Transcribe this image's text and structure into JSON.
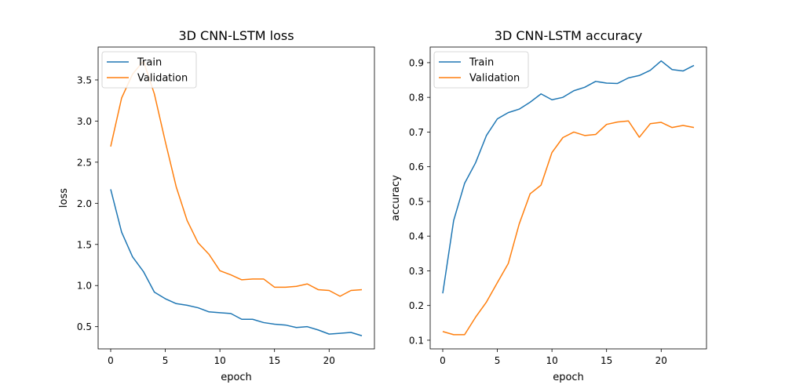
{
  "colors": {
    "train": "#1f77b4",
    "validation": "#ff7f0e"
  },
  "chart_data": [
    {
      "type": "line",
      "title": "3D CNN-LSTM loss",
      "xlabel": "epoch",
      "ylabel": "loss",
      "xlim": [
        -1.15,
        24.15
      ],
      "ylim": [
        0.23,
        3.9
      ],
      "xticks": [
        0,
        5,
        10,
        15,
        20
      ],
      "yticks": [
        0.5,
        1.0,
        1.5,
        2.0,
        2.5,
        3.0,
        3.5
      ],
      "ytick_labels": [
        "0.5",
        "1.0",
        "1.5",
        "2.0",
        "2.5",
        "3.0",
        "3.5"
      ],
      "legend": "upper left",
      "x": [
        0,
        1,
        2,
        3,
        4,
        5,
        6,
        7,
        8,
        9,
        10,
        11,
        12,
        13,
        14,
        15,
        16,
        17,
        18,
        19,
        20,
        21,
        22,
        23
      ],
      "series": [
        {
          "name": "Train",
          "key": "train",
          "values": [
            2.17,
            1.65,
            1.35,
            1.17,
            0.92,
            0.84,
            0.78,
            0.76,
            0.73,
            0.68,
            0.67,
            0.66,
            0.59,
            0.59,
            0.55,
            0.53,
            0.52,
            0.49,
            0.5,
            0.46,
            0.41,
            0.42,
            0.43,
            0.39
          ]
        },
        {
          "name": "Validation",
          "key": "validation",
          "values": [
            2.69,
            3.28,
            3.57,
            3.73,
            3.33,
            2.75,
            2.2,
            1.79,
            1.52,
            1.38,
            1.18,
            1.13,
            1.07,
            1.08,
            1.08,
            0.98,
            0.98,
            0.99,
            1.02,
            0.95,
            0.94,
            0.87,
            0.94,
            0.95
          ]
        }
      ]
    },
    {
      "type": "line",
      "title": "3D CNN-LSTM accuracy",
      "xlabel": "epoch",
      "ylabel": "accuracy",
      "xlim": [
        -1.15,
        24.15
      ],
      "ylim": [
        0.075,
        0.945
      ],
      "xticks": [
        0,
        5,
        10,
        15,
        20
      ],
      "yticks": [
        0.1,
        0.2,
        0.3,
        0.4,
        0.5,
        0.6,
        0.7,
        0.8,
        0.9
      ],
      "ytick_labels": [
        "0.1",
        "0.2",
        "0.3",
        "0.4",
        "0.5",
        "0.6",
        "0.7",
        "0.8",
        "0.9"
      ],
      "legend": "upper left",
      "x": [
        0,
        1,
        2,
        3,
        4,
        5,
        6,
        7,
        8,
        9,
        10,
        11,
        12,
        13,
        14,
        15,
        16,
        17,
        18,
        19,
        20,
        21,
        22,
        23
      ],
      "series": [
        {
          "name": "Train",
          "key": "train",
          "values": [
            0.235,
            0.445,
            0.552,
            0.611,
            0.69,
            0.738,
            0.756,
            0.766,
            0.786,
            0.81,
            0.793,
            0.8,
            0.819,
            0.829,
            0.846,
            0.841,
            0.84,
            0.856,
            0.863,
            0.878,
            0.905,
            0.88,
            0.876,
            0.892
          ]
        },
        {
          "name": "Validation",
          "key": "validation",
          "values": [
            0.125,
            0.116,
            0.116,
            0.166,
            0.21,
            0.266,
            0.321,
            0.435,
            0.522,
            0.547,
            0.641,
            0.684,
            0.7,
            0.69,
            0.693,
            0.722,
            0.729,
            0.732,
            0.685,
            0.724,
            0.728,
            0.713,
            0.719,
            0.713
          ]
        }
      ]
    }
  ]
}
